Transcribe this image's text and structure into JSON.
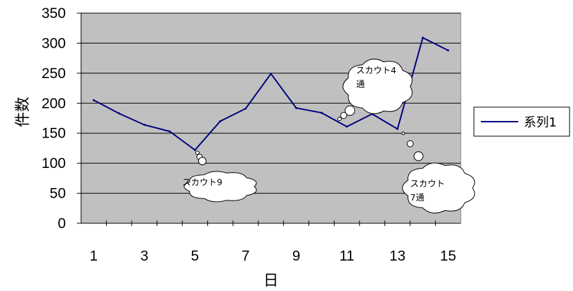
{
  "chart_data": {
    "type": "line",
    "title": "",
    "xlabel": "日",
    "ylabel": "件数",
    "x": [
      1,
      2,
      3,
      4,
      5,
      6,
      7,
      8,
      9,
      10,
      11,
      12,
      13,
      14,
      15
    ],
    "x_tick_labels": [
      "1",
      "3",
      "5",
      "7",
      "9",
      "11",
      "13",
      "15"
    ],
    "y_tick_labels": [
      "0",
      "50",
      "100",
      "150",
      "200",
      "250",
      "300",
      "350"
    ],
    "ylim": [
      0,
      350
    ],
    "series": [
      {
        "name": "系列1",
        "color": "#000080",
        "values": [
          205,
          183,
          164,
          153,
          122,
          170,
          191,
          249,
          192,
          184,
          161,
          182,
          157,
          309,
          288
        ]
      }
    ],
    "legend": {
      "position": "right",
      "entries": [
        "系列1"
      ]
    },
    "grid": true,
    "plot_background": "#c0c0c0",
    "annotations": [
      {
        "x": 5,
        "lines": [
          "スカウト9"
        ]
      },
      {
        "x": 11,
        "lines": [
          "スカウト4",
          "通"
        ]
      },
      {
        "x": 13,
        "lines": [
          "スカウト",
          "7通"
        ]
      }
    ]
  }
}
